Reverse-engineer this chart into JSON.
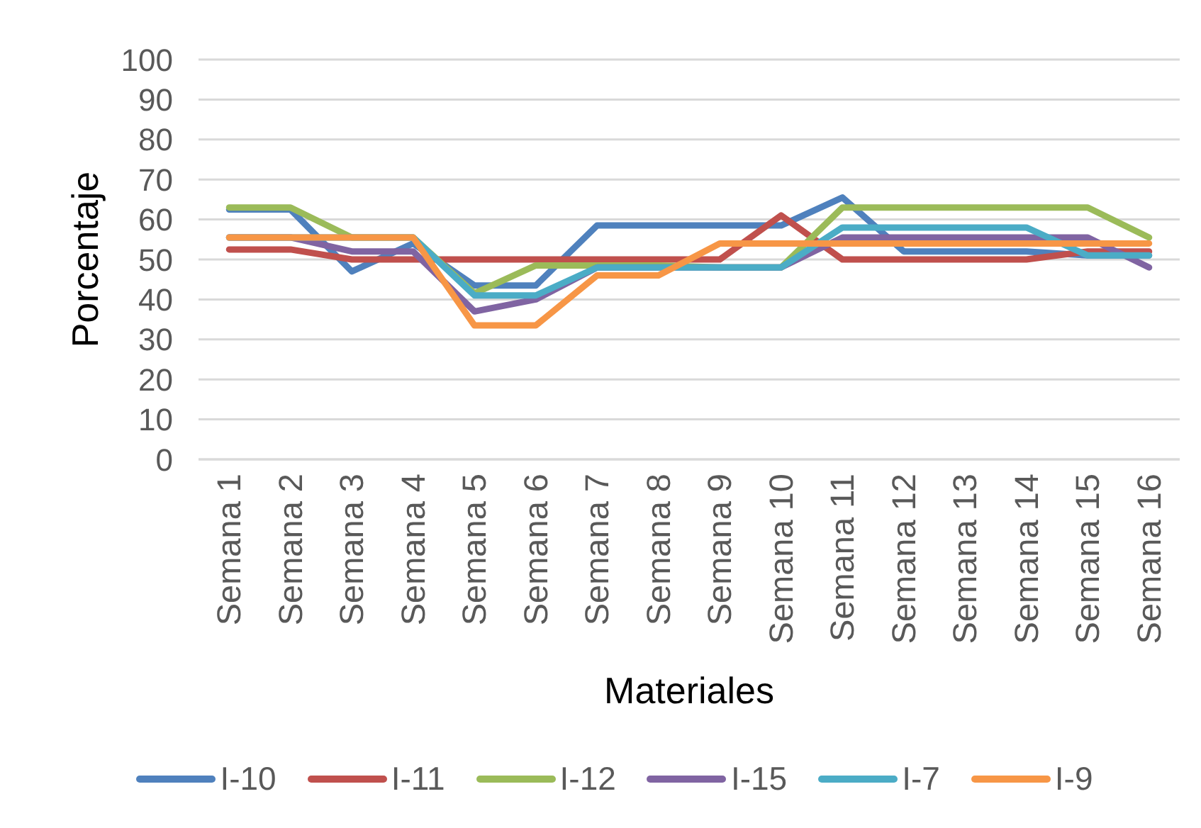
{
  "chart_data": {
    "type": "line",
    "xlabel": "Materiales",
    "ylabel": "Porcentaje",
    "categories": [
      "Semana 1",
      "Semana 2",
      "Semana 3",
      "Semana 4",
      "Semana 5",
      "Semana 6",
      "Semana 7",
      "Semana 8",
      "Semana 9",
      "Semana 10",
      "Semana 11",
      "Semana 12",
      "Semana 13",
      "Semana 14",
      "Semana 15",
      "Semana 16"
    ],
    "series": [
      {
        "name": "I-10",
        "color": "#4f81bd",
        "values": [
          62.5,
          62.5,
          47,
          54,
          43.5,
          43.5,
          58.5,
          58.5,
          58.5,
          58.5,
          65.5,
          52,
          52,
          52,
          51,
          51
        ]
      },
      {
        "name": "I-11",
        "color": "#c0504d",
        "values": [
          52.5,
          52.5,
          50,
          50,
          50,
          50,
          50,
          50,
          50,
          61,
          50,
          50,
          50,
          50,
          52,
          52
        ]
      },
      {
        "name": "I-12",
        "color": "#9bbb59",
        "values": [
          63,
          63,
          55.5,
          55.5,
          41.5,
          48.5,
          48.5,
          48.5,
          48,
          48,
          63,
          63,
          63,
          63,
          63,
          55.5
        ]
      },
      {
        "name": "I-15",
        "color": "#8064a2",
        "values": [
          55.5,
          55.5,
          52,
          52,
          37,
          40,
          48,
          48,
          48,
          48,
          55.5,
          55.5,
          55.5,
          55.5,
          55.5,
          48
        ]
      },
      {
        "name": "I-7",
        "color": "#4bacc6",
        "values": [
          55.5,
          55.5,
          55.5,
          55.5,
          41,
          41,
          48,
          48,
          48,
          48,
          58,
          58,
          58,
          58,
          51,
          51
        ]
      },
      {
        "name": "I-9",
        "color": "#f79646",
        "values": [
          55.5,
          55.5,
          55.5,
          55.5,
          33.5,
          33.5,
          46,
          46,
          54,
          54,
          54,
          54,
          54,
          54,
          54,
          54
        ]
      }
    ],
    "ylim": [
      0,
      100
    ],
    "yticks": [
      0,
      10,
      20,
      30,
      40,
      50,
      60,
      70,
      80,
      90,
      100
    ],
    "grid": "y",
    "legend": "bottom"
  }
}
